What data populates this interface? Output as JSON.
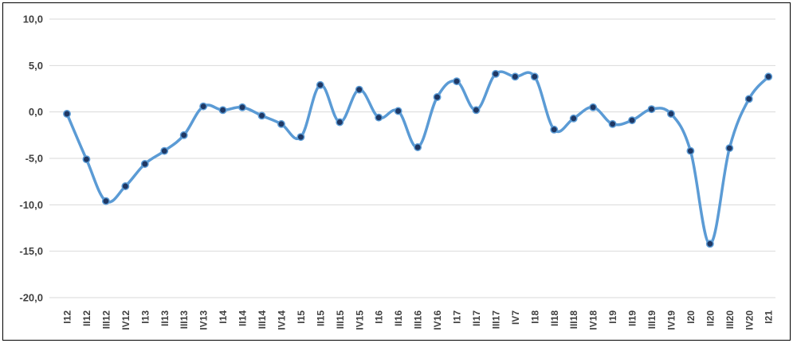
{
  "chart_data": {
    "type": "line",
    "title": "",
    "xlabel": "",
    "ylabel": "",
    "ylim": [
      -20,
      10
    ],
    "yticks": [
      10,
      5,
      0,
      -5,
      -10,
      -15,
      -20
    ],
    "ytick_labels": [
      "10,0",
      "5,0",
      "0,0",
      "-5,0",
      "-10,0",
      "-15,0",
      "-20,0"
    ],
    "grid": true,
    "legend": "none",
    "line_color": "#5b9bd5",
    "marker_color": "#1f3864",
    "categories": [
      "I12",
      "II12",
      "III12",
      "IV12",
      "I13",
      "II13",
      "III13",
      "IV13",
      "I14",
      "II14",
      "III14",
      "IV14",
      "I15",
      "II15",
      "III15",
      "IV15",
      "I16",
      "II16",
      "III16",
      "IV16",
      "I17",
      "II17",
      "III17",
      "IV7",
      "I18",
      "II18",
      "III18",
      "IV18",
      "I19",
      "II19",
      "III19",
      "IV19",
      "I20",
      "II20",
      "III20",
      "IV20",
      "I21"
    ],
    "series": [
      {
        "values": [
          -0.2,
          -5.1,
          -9.6,
          -8.0,
          -5.6,
          -4.2,
          -2.5,
          0.6,
          0.2,
          0.5,
          -0.4,
          -1.3,
          -2.7,
          2.9,
          -1.1,
          2.4,
          -0.6,
          0.1,
          -3.8,
          1.6,
          3.3,
          0.2,
          4.1,
          3.8,
          3.8,
          -1.9,
          -0.7,
          0.5,
          -1.3,
          -0.9,
          0.3,
          -0.2,
          -4.2,
          -14.2,
          -3.9,
          1.4,
          3.8
        ]
      }
    ]
  }
}
